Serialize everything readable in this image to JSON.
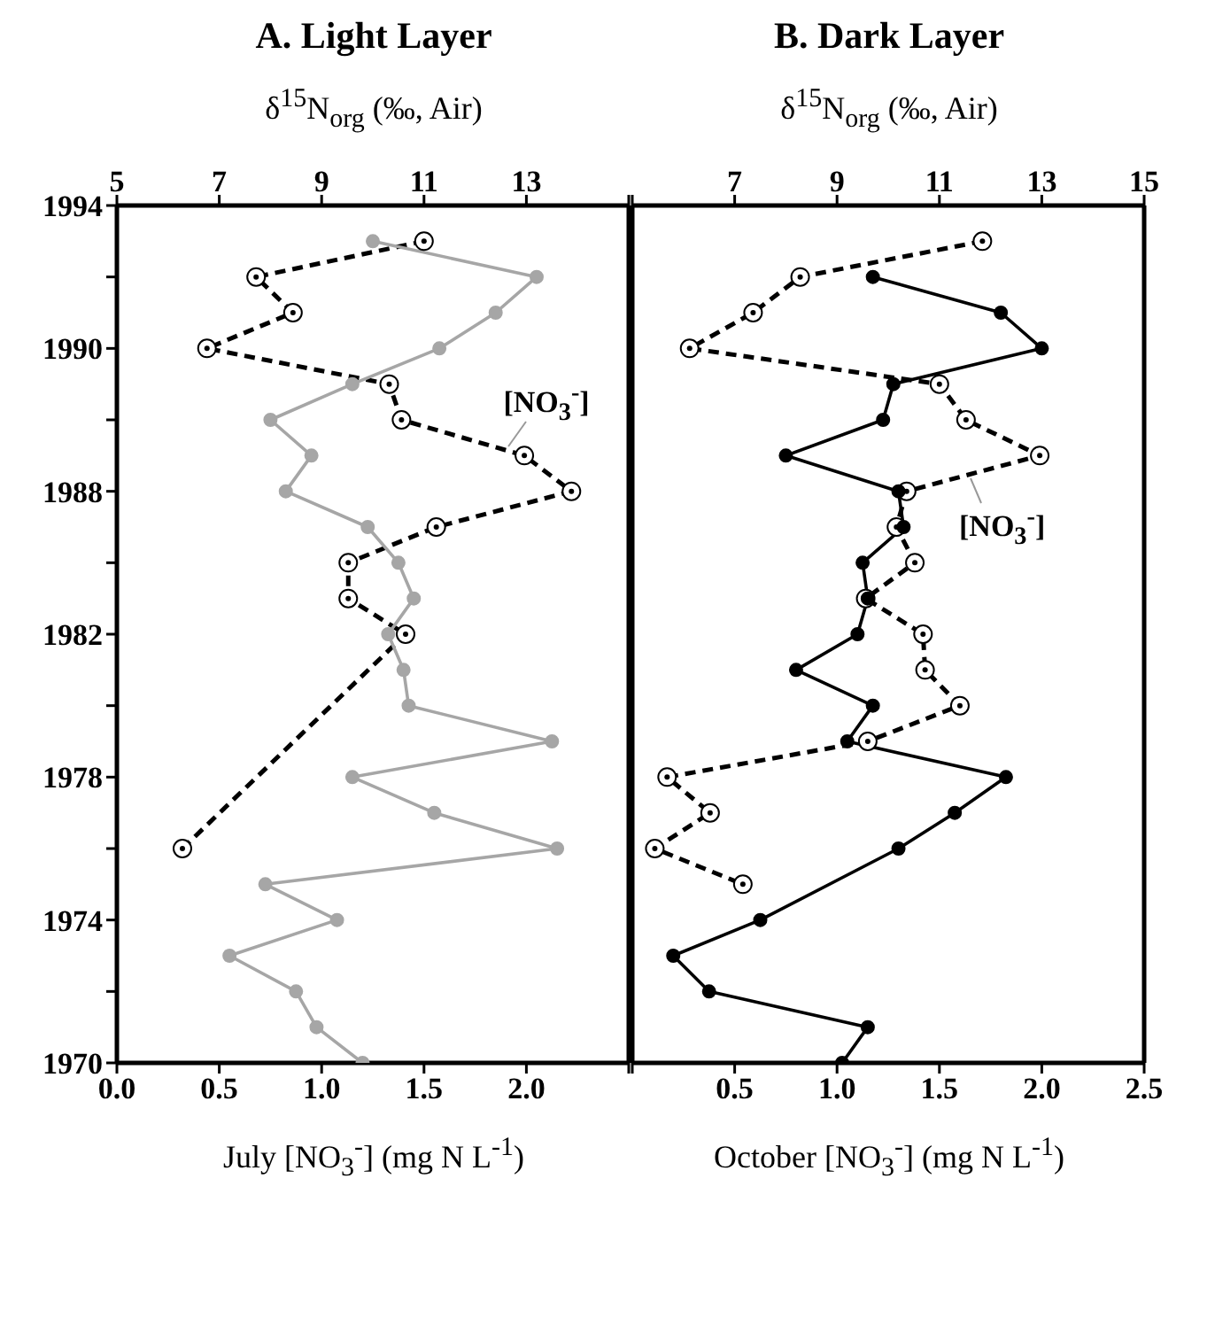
{
  "chart_data": [
    {
      "type": "line",
      "title": "A. Light Layer",
      "x2label": "δ$^{15}$N$_{org}$ (‰, Air)",
      "xlabel": "July [NO$_{3}$$^{-}$] (mg N L$^{-1}$)",
      "orientation": "horizontal",
      "marker": "circle",
      "grid": false,
      "legend": false,
      "categories": [
        "1994",
        null,
        null,
        null,
        "1990",
        null,
        null,
        null,
        "1988",
        null,
        null,
        null,
        "1982",
        null,
        null,
        null,
        "1978",
        null,
        null,
        null,
        "1974",
        null,
        null,
        null,
        "1970"
      ],
      "series": [
        {
          "color": "#a6a6a6",
          "axis": "x2",
          "line_style": "solid",
          "values": [
            null,
            10.0,
            13.2,
            12.4,
            11.3,
            9.6,
            8.0,
            8.8,
            8.3,
            9.9,
            10.5,
            10.8,
            10.3,
            10.6,
            10.7,
            13.5,
            9.6,
            11.2,
            13.6,
            7.9,
            9.3,
            7.2,
            8.5,
            8.9,
            9.8
          ]
        },
        {
          "name": "[NO$_{3}$$^{-}$]",
          "color": "#000000",
          "line_style": "dashed",
          "values": [
            null,
            1.5,
            0.68,
            0.86,
            0.44,
            1.33,
            1.39,
            1.99,
            2.22,
            1.56,
            1.13,
            1.13,
            1.41,
            null,
            null,
            null,
            null,
            null,
            0.32,
            null,
            null,
            null,
            null,
            null,
            null
          ]
        }
      ],
      "xlim": [
        0,
        2.5
      ],
      "xticks": [
        {
          "value": 0,
          "label": "0.0"
        },
        0.5,
        {
          "value": 1,
          "label": "1.0"
        },
        1.5,
        {
          "value": 2,
          "label": "2.0"
        },
        {
          "value": 2.5,
          "label": null
        }
      ],
      "x2lim": [
        5,
        15
      ],
      "x2ticks": [
        5,
        7,
        9,
        11,
        13,
        {
          "value": 15,
          "label": null
        }
      ]
    },
    {
      "type": "line",
      "title": "B. Dark Layer",
      "x2label": "δ$^{15}$N$_{org}$ (‰, Air)",
      "xlabel": "October [NO$_{3}$$^{-}$] (mg N L$^{-1}$)",
      "orientation": "horizontal",
      "marker": "circle",
      "grid": false,
      "legend": false,
      "tick_labels": "x",
      "categories": [
        "1994",
        null,
        null,
        null,
        "1990",
        null,
        null,
        null,
        "1988",
        null,
        null,
        null,
        "1982",
        null,
        null,
        null,
        "1978",
        null,
        null,
        null,
        "1974",
        null,
        null,
        null,
        "1970"
      ],
      "series": [
        {
          "color": "#000000",
          "axis": "x2",
          "line_style": "solid",
          "values": [
            null,
            null,
            9.7,
            12.2,
            13.0,
            10.1,
            9.9,
            8.0,
            10.2,
            10.3,
            9.5,
            9.6,
            9.4,
            8.2,
            9.7,
            9.2,
            12.3,
            11.3,
            10.2,
            null,
            7.5,
            5.8,
            6.5,
            9.6,
            9.1
          ]
        },
        {
          "name": "[NO$_{3}$$^{-}$]",
          "color": "#000000",
          "line_style": "dashed",
          "values": [
            null,
            1.71,
            0.82,
            0.59,
            0.28,
            1.5,
            1.63,
            1.99,
            1.34,
            1.29,
            1.38,
            1.14,
            1.42,
            1.43,
            1.6,
            1.15,
            0.17,
            0.38,
            0.11,
            0.54,
            null,
            null,
            null,
            null,
            null
          ]
        }
      ],
      "xlim": [
        0,
        2.5
      ],
      "xticks": [
        {
          "value": 0,
          "label": null
        },
        0.5,
        {
          "value": 1,
          "label": "1.0"
        },
        1.5,
        {
          "value": 2,
          "label": "2.0"
        },
        2.5
      ],
      "x2lim": [
        5,
        15
      ],
      "x2ticks": [
        {
          "value": 5,
          "label": null
        },
        7,
        9,
        11,
        13,
        15
      ]
    }
  ]
}
